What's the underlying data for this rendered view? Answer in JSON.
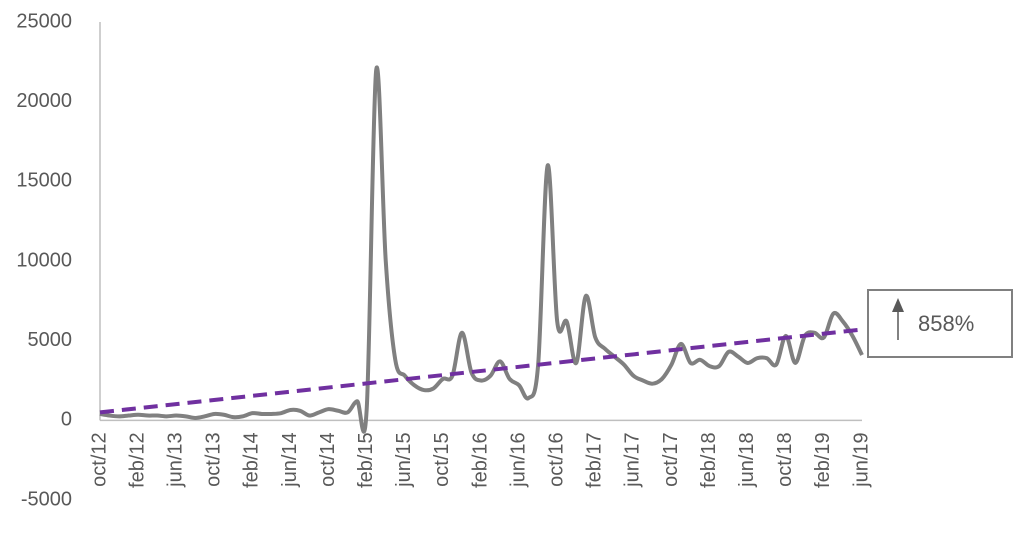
{
  "chart_data": {
    "type": "line",
    "categories": [
      "oct/12",
      null,
      null,
      null,
      "feb/12",
      null,
      null,
      null,
      "jun/13",
      null,
      null,
      null,
      "oct/13",
      null,
      null,
      null,
      "feb/14",
      null,
      null,
      null,
      "jun/14",
      null,
      null,
      null,
      "oct/14",
      null,
      null,
      null,
      "feb/15",
      null,
      null,
      null,
      "jun/15",
      null,
      null,
      null,
      "oct/15",
      null,
      null,
      null,
      "feb/16",
      null,
      null,
      null,
      "jun/16",
      null,
      null,
      null,
      "oct/16",
      null,
      null,
      null,
      "feb/17",
      null,
      null,
      null,
      "jun/17",
      null,
      null,
      null,
      "oct/17",
      null,
      null,
      null,
      "feb/18",
      null,
      null,
      null,
      "jun/18",
      null,
      null,
      null,
      "oct/18",
      null,
      null,
      null,
      "feb/19",
      null,
      null,
      null,
      "jun/19"
    ],
    "series": [
      {
        "color": "#808080",
        "values": [
          400,
          300,
          250,
          300,
          350,
          300,
          300,
          250,
          300,
          250,
          150,
          250,
          400,
          350,
          200,
          250,
          450,
          400,
          400,
          450,
          650,
          600,
          300,
          500,
          700,
          600,
          500,
          1200,
          700,
          22000,
          10000,
          3800,
          2800,
          2200,
          1900,
          2000,
          2600,
          2800,
          5500,
          3000,
          2500,
          2800,
          3700,
          2600,
          2200,
          1400,
          3500,
          16000,
          6200,
          6200,
          3600,
          7800,
          5200,
          4500,
          4000,
          3500,
          2800,
          2500,
          2300,
          2600,
          3500,
          4800,
          3600,
          3800,
          3400,
          3400,
          4300,
          4000,
          3600,
          3900,
          3900,
          3500,
          5300,
          3600,
          5300,
          5500,
          5200,
          6700,
          6200,
          5300,
          4100
        ]
      }
    ],
    "trendline": {
      "color": "#7030a0",
      "values": [
        500,
        5700
      ]
    },
    "annotation": "858%",
    "ylim": [
      -5000,
      25000
    ],
    "yticks": [
      -5000,
      0,
      5000,
      10000,
      15000,
      20000,
      25000
    ]
  }
}
